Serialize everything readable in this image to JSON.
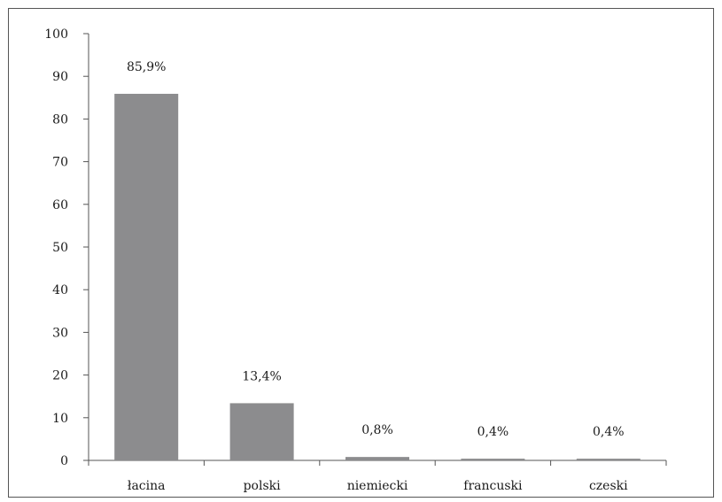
{
  "chart_data": {
    "type": "bar",
    "categories": [
      "łacina",
      "polski",
      "niemiecki",
      "francuski",
      "czeski"
    ],
    "values": [
      85.9,
      13.4,
      0.8,
      0.4,
      0.4
    ],
    "data_labels": [
      "85,9%",
      "13,4%",
      "0,8%",
      "0,4%",
      "0,4%"
    ],
    "ylim": [
      0,
      100
    ],
    "yticks": [
      0,
      10,
      20,
      30,
      40,
      50,
      60,
      70,
      80,
      90,
      100
    ],
    "title": "",
    "xlabel": "",
    "ylabel": "",
    "grid": false,
    "legend": "none",
    "bar_color": "#8c8c8e",
    "axis_color": "#555555"
  }
}
